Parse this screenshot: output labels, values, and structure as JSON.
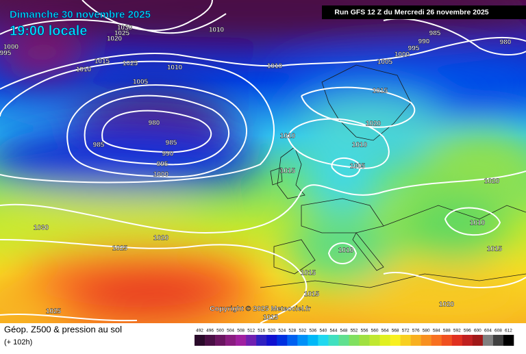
{
  "header": {
    "date": "Dimanche 30 novembre 2025",
    "time": "19:00 locale",
    "run": "Run GFS 12 Z du Mercredi 26 novembre 2025"
  },
  "copyright": "Copyright © 2025 Meteociel.fr",
  "footer": {
    "title": "Géop. Z500 & pression au sol",
    "lead": "(+ 102h)"
  },
  "legend": {
    "values": [
      492,
      496,
      500,
      504,
      508,
      512,
      516,
      520,
      524,
      528,
      532,
      536,
      540,
      544,
      548,
      552,
      556,
      560,
      564,
      568,
      572,
      576,
      580,
      584,
      588,
      592,
      596,
      600,
      604,
      608,
      612
    ],
    "colors": [
      "#2a0a2a",
      "#4a0f45",
      "#6a1560",
      "#8a1c80",
      "#a020a0",
      "#7020b0",
      "#3020c0",
      "#1010d0",
      "#0030e0",
      "#0060f0",
      "#0090f8",
      "#00b8f8",
      "#20d8f0",
      "#40e0c0",
      "#60e090",
      "#80e060",
      "#a0e040",
      "#c0e830",
      "#e0f020",
      "#f8f020",
      "#f8d020",
      "#f8b020",
      "#f89020",
      "#f87020",
      "#f05020",
      "#e03020",
      "#c02020",
      "#a01818",
      "#808080",
      "#404040",
      "#000000"
    ]
  },
  "isobar_labels": [
    1030,
    1025,
    1020,
    995,
    1000,
    1015,
    1025,
    1010,
    1005,
    1010,
    980,
    985,
    990,
    995,
    1000,
    985,
    1010,
    1010,
    985,
    990,
    995,
    1000,
    1005,
    980,
    1015,
    1020,
    1010,
    1010,
    1005,
    1015,
    1020,
    1010,
    1015,
    1030,
    1025,
    1020,
    1010,
    1015,
    1015,
    1020,
    1025,
    1015
  ]
}
